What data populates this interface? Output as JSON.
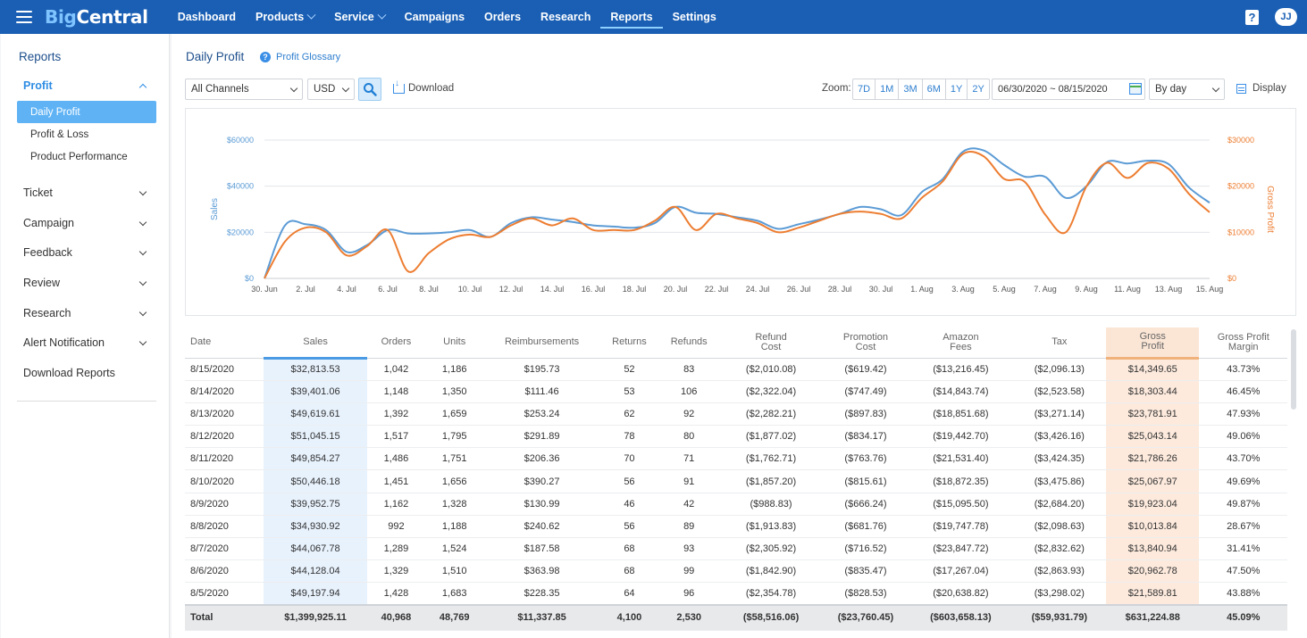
{
  "topbar": {
    "logo_part1": "Big",
    "logo_part2": "Central",
    "nav": [
      {
        "label": "Dashboard",
        "dropdown": false,
        "active": false
      },
      {
        "label": "Products",
        "dropdown": true,
        "active": false
      },
      {
        "label": "Service",
        "dropdown": true,
        "active": false
      },
      {
        "label": "Campaigns",
        "dropdown": false,
        "active": false
      },
      {
        "label": "Orders",
        "dropdown": false,
        "active": false
      },
      {
        "label": "Research",
        "dropdown": false,
        "active": false
      },
      {
        "label": "Reports",
        "dropdown": false,
        "active": true
      },
      {
        "label": "Settings",
        "dropdown": false,
        "active": false
      }
    ],
    "help_glyph": "?",
    "avatar_initials": "JJ"
  },
  "sidebar": {
    "title": "Reports",
    "profit_group": "Profit",
    "profit_items": [
      "Daily Profit",
      "Profit & Loss",
      "Product Performance"
    ],
    "groups": [
      "Ticket",
      "Campaign",
      "Feedback",
      "Review",
      "Research",
      "Alert Notification"
    ],
    "download_reports": "Download Reports"
  },
  "page": {
    "title": "Daily Profit",
    "glossary_label": "Profit Glossary",
    "channel_select": "All Channels",
    "currency_select": "USD",
    "download_label": "Download",
    "zoom_label": "Zoom:",
    "zoom_options": [
      "7D",
      "1M",
      "3M",
      "6M",
      "1Y",
      "2Y"
    ],
    "date_range": "06/30/2020 ~ 08/15/2020",
    "granularity_select": "By day",
    "display_label": "Display"
  },
  "colors": {
    "brand": "#1a5fb4",
    "sales_line": "#5b9bd5",
    "profit_line": "#ed7d31",
    "active_sidebar": "#5fb3f5"
  },
  "chart_data": {
    "type": "line",
    "xlabel": "",
    "ylabel": "Sales",
    "y2label": "Gross Profit",
    "x_tick_labels": [
      "30. Jun",
      "2. Jul",
      "4. Jul",
      "6. Jul",
      "8. Jul",
      "10. Jul",
      "12. Jul",
      "14. Jul",
      "16. Jul",
      "18. Jul",
      "20. Jul",
      "22. Jul",
      "24. Jul",
      "26. Jul",
      "28. Jul",
      "30. Jul",
      "1. Aug",
      "3. Aug",
      "5. Aug",
      "7. Aug",
      "9. Aug",
      "11. Aug",
      "13. Aug",
      "15. Aug"
    ],
    "y_ticks": [
      "$0",
      "$20000",
      "$40000",
      "$60000"
    ],
    "y2_ticks": [
      "$0",
      "$10000",
      "$20000",
      "$30000"
    ],
    "ylim": [
      0,
      60000
    ],
    "y2lim": [
      0,
      30000
    ],
    "x": [
      "6/30",
      "7/1",
      "7/2",
      "7/3",
      "7/4",
      "7/5",
      "7/6",
      "7/7",
      "7/8",
      "7/9",
      "7/10",
      "7/11",
      "7/12",
      "7/13",
      "7/14",
      "7/15",
      "7/16",
      "7/17",
      "7/18",
      "7/19",
      "7/20",
      "7/21",
      "7/22",
      "7/23",
      "7/24",
      "7/25",
      "7/26",
      "7/27",
      "7/28",
      "7/29",
      "7/30",
      "7/31",
      "8/1",
      "8/2",
      "8/3",
      "8/4",
      "8/5",
      "8/6",
      "8/7",
      "8/8",
      "8/9",
      "8/10",
      "8/11",
      "8/12",
      "8/13",
      "8/14",
      "8/15"
    ],
    "series": [
      {
        "name": "Sales",
        "axis": "left",
        "values": [
          0,
          23000,
          23500,
          21000,
          11500,
          14500,
          21000,
          19500,
          19500,
          20000,
          21000,
          18000,
          24000,
          26500,
          25500,
          24500,
          23000,
          22500,
          22000,
          24000,
          31000,
          28500,
          28000,
          26500,
          25000,
          21500,
          23500,
          25500,
          28000,
          31000,
          30000,
          27500,
          37500,
          43000,
          55000,
          55500,
          49197.94,
          44128.04,
          44067.78,
          34930.92,
          39952.75,
          50446.18,
          49854.27,
          51045.15,
          49619.61,
          39401.06,
          32813.53
        ]
      },
      {
        "name": "Gross Profit",
        "axis": "right",
        "values": [
          0,
          8000,
          11000,
          10000,
          5000,
          7000,
          10500,
          1500,
          5500,
          8500,
          9500,
          9000,
          11500,
          13000,
          11500,
          13000,
          10500,
          10500,
          10500,
          12500,
          15500,
          10500,
          14000,
          13000,
          12000,
          10000,
          11000,
          12500,
          14000,
          14500,
          14000,
          13000,
          17500,
          21000,
          27000,
          26500,
          21589.81,
          20962.78,
          13840.94,
          10013.84,
          19923.04,
          25067.97,
          21786.26,
          25043.14,
          23781.91,
          18303.44,
          14349.65
        ]
      }
    ]
  },
  "table": {
    "headers": [
      {
        "key": "date",
        "l1": "Date",
        "l2": ""
      },
      {
        "key": "sales",
        "l1": "Sales",
        "l2": ""
      },
      {
        "key": "orders",
        "l1": "Orders",
        "l2": ""
      },
      {
        "key": "units",
        "l1": "Units",
        "l2": ""
      },
      {
        "key": "reimb",
        "l1": "Reimbursements",
        "l2": ""
      },
      {
        "key": "returns",
        "l1": "Returns",
        "l2": ""
      },
      {
        "key": "refunds",
        "l1": "Refunds",
        "l2": ""
      },
      {
        "key": "refund_cost",
        "l1": "Refund",
        "l2": "Cost"
      },
      {
        "key": "promo_cost",
        "l1": "Promotion",
        "l2": "Cost"
      },
      {
        "key": "amazon_fees",
        "l1": "Amazon",
        "l2": "Fees"
      },
      {
        "key": "tax",
        "l1": "Tax",
        "l2": ""
      },
      {
        "key": "gross_profit",
        "l1": "Gross",
        "l2": "Profit"
      },
      {
        "key": "gp_margin",
        "l1": "Gross Profit",
        "l2": "Margin"
      }
    ],
    "rows": [
      [
        "8/15/2020",
        "$32,813.53",
        "1,042",
        "1,186",
        "$195.73",
        "52",
        "83",
        "($2,010.08)",
        "($619.42)",
        "($13,216.45)",
        "($2,096.13)",
        "$14,349.65",
        "43.73%"
      ],
      [
        "8/14/2020",
        "$39,401.06",
        "1,148",
        "1,350",
        "$111.46",
        "53",
        "106",
        "($2,322.04)",
        "($747.49)",
        "($14,843.74)",
        "($2,523.58)",
        "$18,303.44",
        "46.45%"
      ],
      [
        "8/13/2020",
        "$49,619.61",
        "1,392",
        "1,659",
        "$253.24",
        "62",
        "92",
        "($2,282.21)",
        "($897.83)",
        "($18,851.68)",
        "($3,271.14)",
        "$23,781.91",
        "47.93%"
      ],
      [
        "8/12/2020",
        "$51,045.15",
        "1,517",
        "1,795",
        "$291.89",
        "78",
        "80",
        "($1,877.02)",
        "($834.17)",
        "($19,442.70)",
        "($3,426.16)",
        "$25,043.14",
        "49.06%"
      ],
      [
        "8/11/2020",
        "$49,854.27",
        "1,486",
        "1,751",
        "$206.36",
        "70",
        "71",
        "($1,762.71)",
        "($763.76)",
        "($21,531.40)",
        "($3,424.35)",
        "$21,786.26",
        "43.70%"
      ],
      [
        "8/10/2020",
        "$50,446.18",
        "1,451",
        "1,656",
        "$390.27",
        "56",
        "91",
        "($1,857.20)",
        "($815.61)",
        "($18,872.35)",
        "($3,475.86)",
        "$25,067.97",
        "49.69%"
      ],
      [
        "8/9/2020",
        "$39,952.75",
        "1,162",
        "1,328",
        "$130.99",
        "46",
        "42",
        "($988.83)",
        "($666.24)",
        "($15,095.50)",
        "($2,684.20)",
        "$19,923.04",
        "49.87%"
      ],
      [
        "8/8/2020",
        "$34,930.92",
        "992",
        "1,188",
        "$240.62",
        "56",
        "89",
        "($1,913.83)",
        "($681.76)",
        "($19,747.78)",
        "($2,098.63)",
        "$10,013.84",
        "28.67%"
      ],
      [
        "8/7/2020",
        "$44,067.78",
        "1,289",
        "1,524",
        "$187.58",
        "68",
        "93",
        "($2,305.92)",
        "($716.52)",
        "($23,847.72)",
        "($2,832.62)",
        "$13,840.94",
        "31.41%"
      ],
      [
        "8/6/2020",
        "$44,128.04",
        "1,329",
        "1,510",
        "$363.98",
        "68",
        "99",
        "($1,842.90)",
        "($835.47)",
        "($17,267.04)",
        "($2,863.93)",
        "$20,962.78",
        "47.50%"
      ],
      [
        "8/5/2020",
        "$49,197.94",
        "1,428",
        "1,683",
        "$228.35",
        "64",
        "96",
        "($2,354.78)",
        "($828.53)",
        "($20,638.82)",
        "($3,298.02)",
        "$21,589.81",
        "43.88%"
      ]
    ],
    "total": [
      "Total",
      "$1,399,925.11",
      "40,968",
      "48,769",
      "$11,337.85",
      "4,100",
      "2,530",
      "($58,516.06)",
      "($23,760.45)",
      "($603,658.13)",
      "($59,931.79)",
      "$631,224.88",
      "45.09%"
    ]
  }
}
